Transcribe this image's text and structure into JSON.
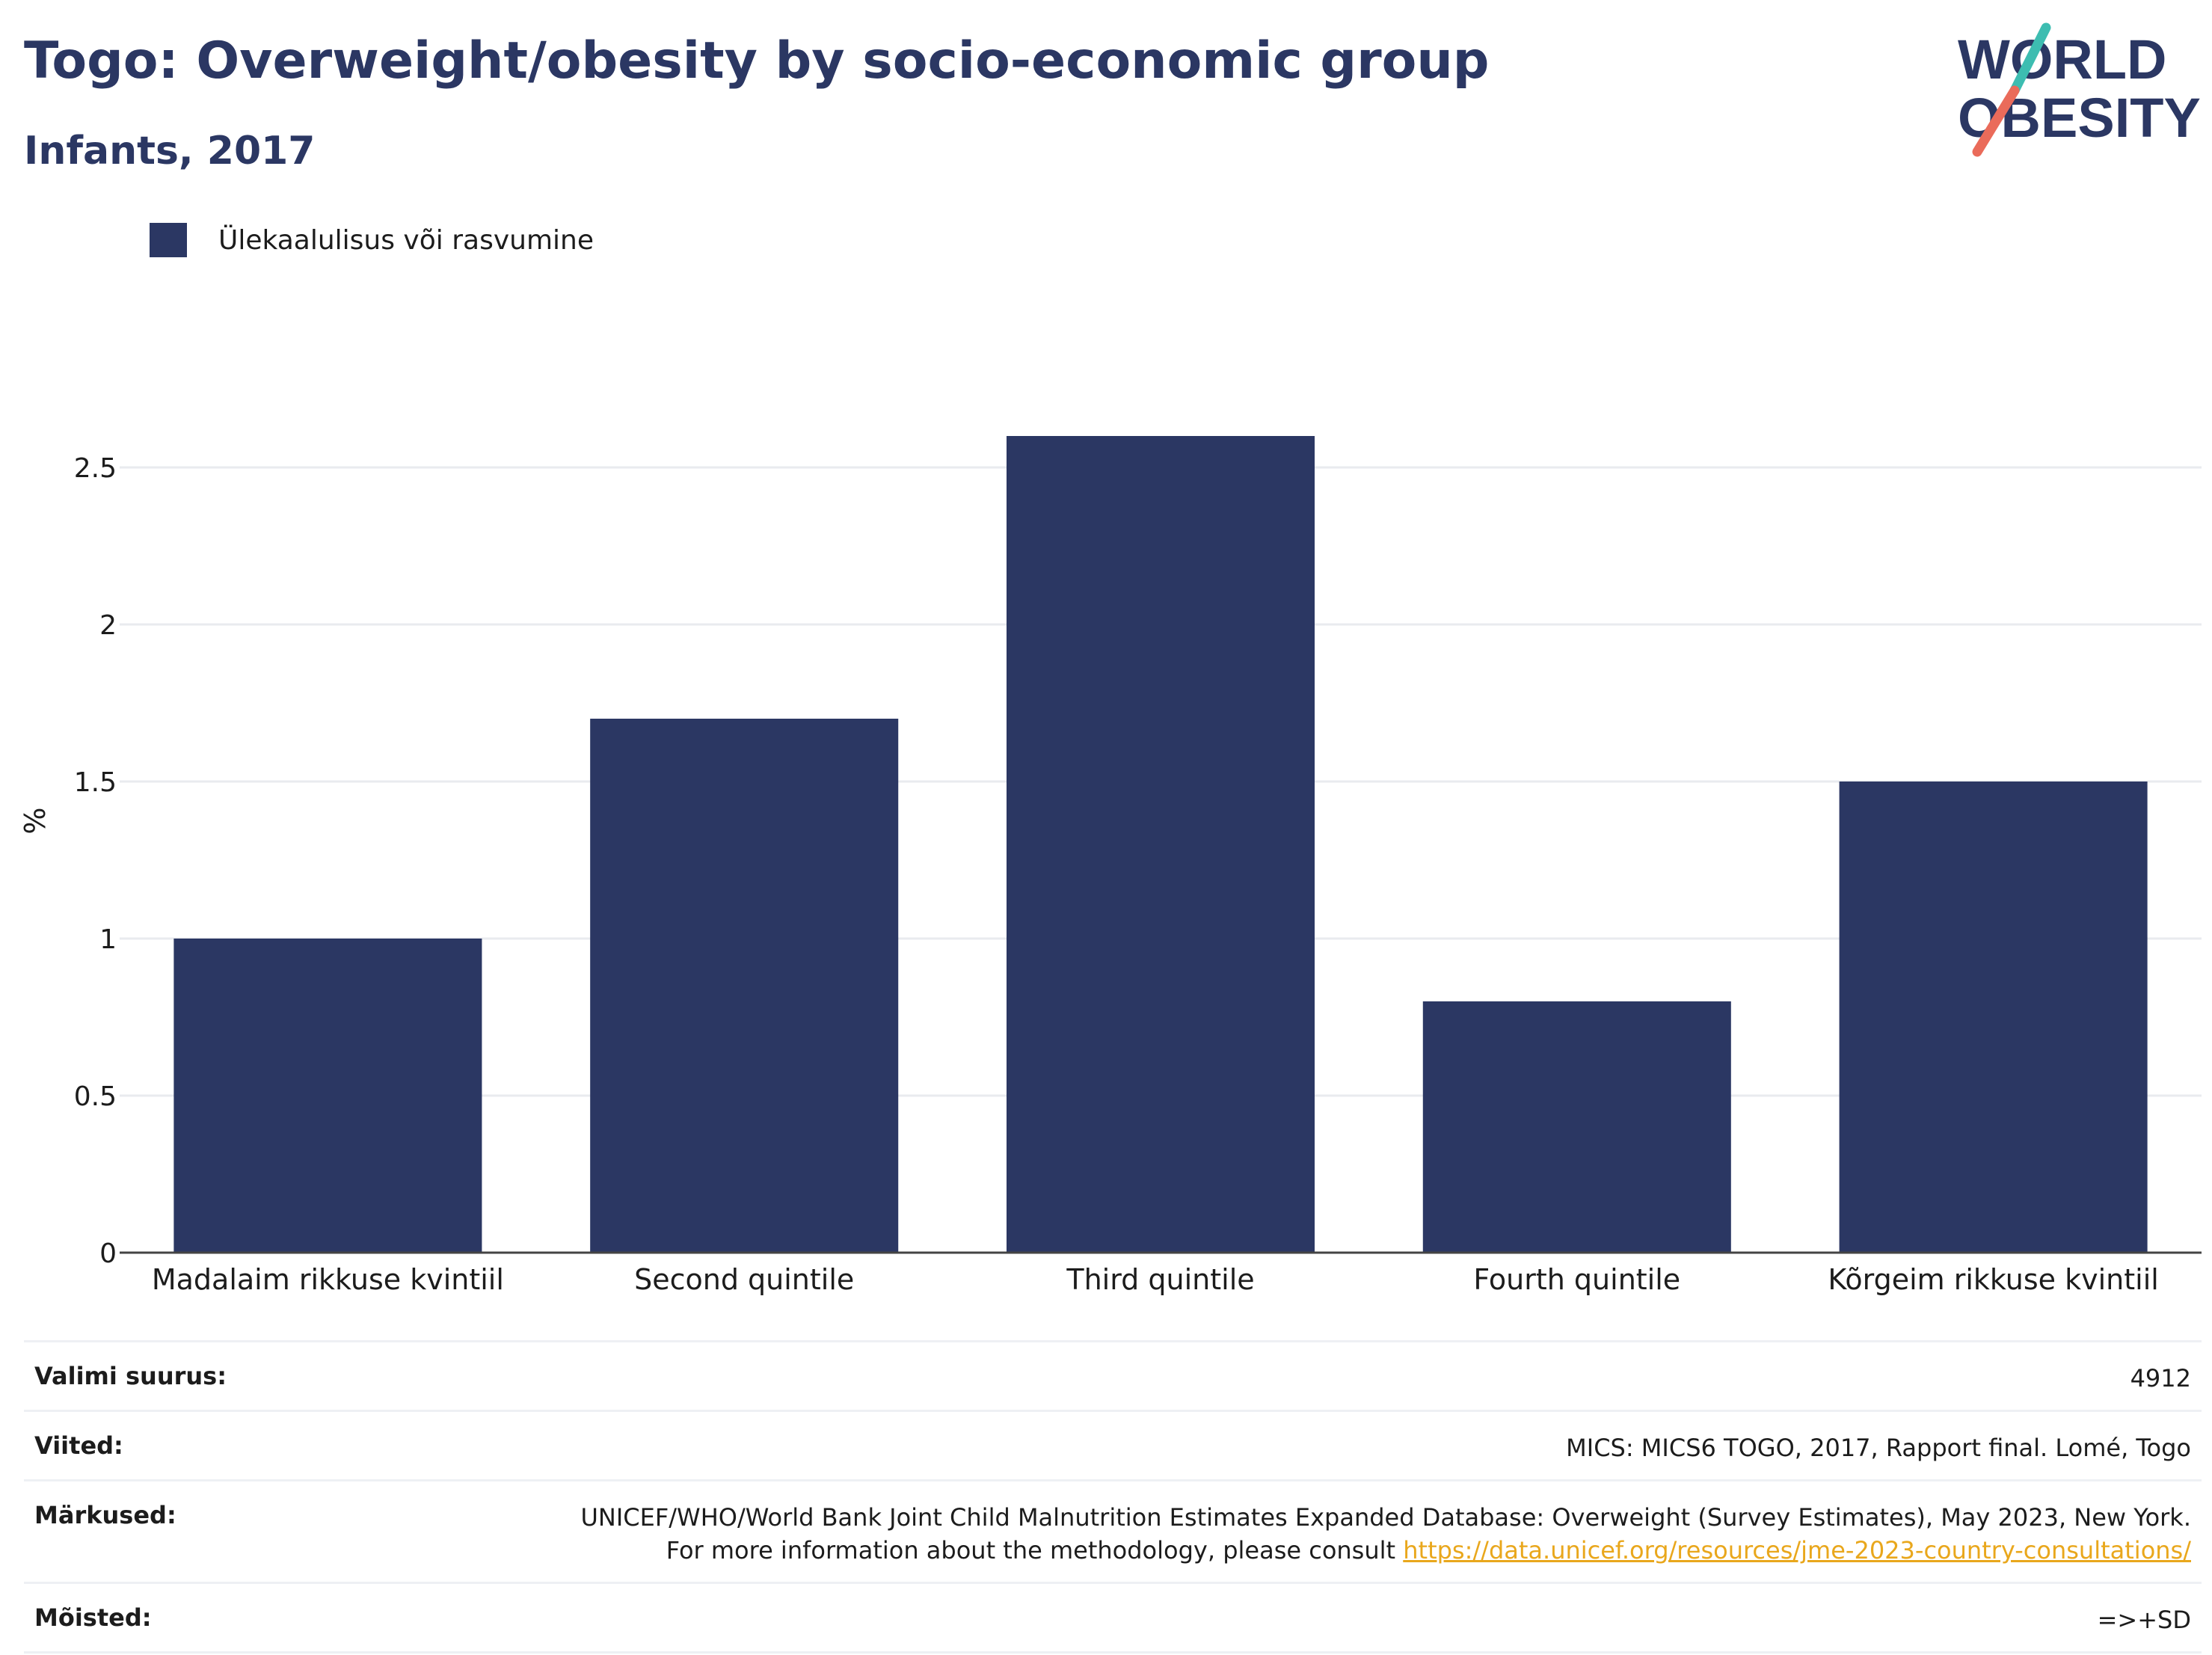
{
  "header": {
    "title": "Togo: Overweight/obesity by socio-economic group",
    "subtitle": "Infants, 2017"
  },
  "logo": {
    "line1": "WORLD",
    "line2": "OBESITY",
    "accent_teal": "#3dbdb1",
    "accent_red": "#ea6b5a",
    "text_color": "#2b3763"
  },
  "legend": {
    "label": "Ülekaalulisus või rasvumine",
    "color": "#2b3763"
  },
  "chart_data": {
    "type": "bar",
    "categories": [
      "Madalaim rikkuse kvintiil",
      "Second quintile",
      "Third quintile",
      "Fourth quintile",
      "Kõrgeim rikkuse kvintiil"
    ],
    "series": [
      {
        "name": "Ülekaalulisus või rasvumine",
        "values": [
          1.0,
          1.7,
          2.6,
          0.8,
          1.5
        ],
        "color": "#2b3763"
      }
    ],
    "ylabel": "%",
    "ylim": [
      0,
      2.75
    ],
    "yticks": [
      0,
      0.5,
      1,
      1.5,
      2,
      2.5
    ],
    "ytick_labels": [
      "0",
      "0.5",
      "1",
      "1.5",
      "2",
      "2.5"
    ],
    "grid": true,
    "legend_position": "top-left"
  },
  "meta": {
    "rows": [
      {
        "key": "Valimi suurus:",
        "value": "4912"
      },
      {
        "key": "Viited:",
        "value": "MICS: MICS6 TOGO, 2017, Rapport final. Lomé, Togo"
      },
      {
        "key": "Märkused:",
        "value": "UNICEF/WHO/World Bank Joint Child Malnutrition Estimates Expanded Database: Overweight (Survey Estimates), May 2023, New York. For more information about the methodology, please consult ",
        "link": "https://data.unicef.org/resources/jme-2023-country-consultations/"
      },
      {
        "key": "Mõisted:",
        "value": "=>+SD"
      }
    ]
  }
}
